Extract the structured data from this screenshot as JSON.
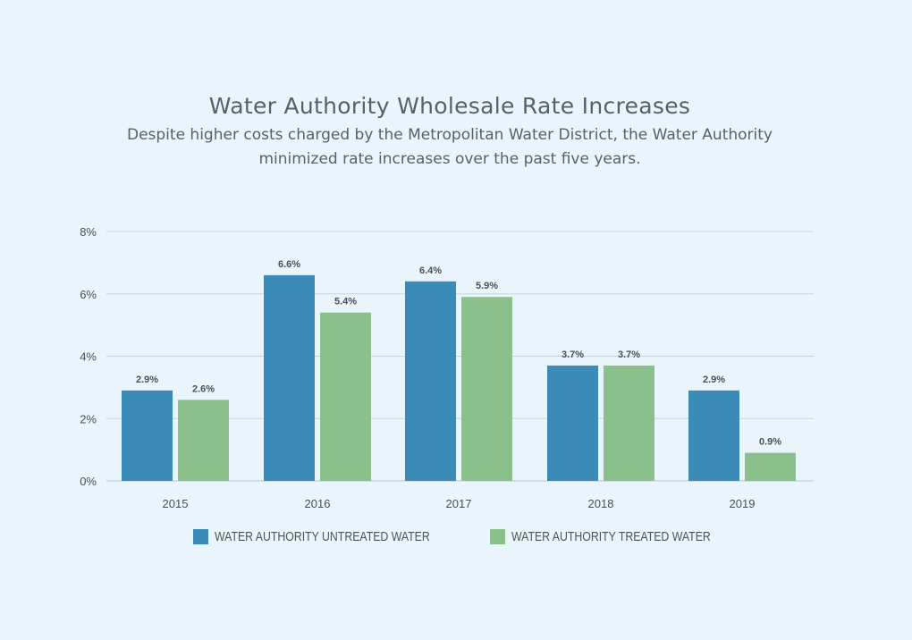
{
  "chart_data": {
    "type": "bar",
    "title": "Water Authority Wholesale Rate Increases",
    "subtitle": "Despite higher costs charged by the Metropolitan Water District, the Water Authority minimized rate increases over the past five years.",
    "categories": [
      "2015",
      "2016",
      "2017",
      "2018",
      "2019"
    ],
    "series": [
      {
        "name": "WATER AUTHORITY UNTREATED WATER",
        "color": "#3a8cb6",
        "values": [
          2.9,
          6.6,
          6.4,
          3.7,
          2.9
        ],
        "labels": [
          "2.9%",
          "6.6%",
          "6.4%",
          "3.7%",
          "2.9%"
        ]
      },
      {
        "name": "WATER AUTHORITY TREATED WATER",
        "color": "#8bbf8b",
        "values": [
          2.6,
          5.4,
          5.9,
          3.7,
          0.9
        ],
        "labels": [
          "2.6%",
          "5.4%",
          "5.9%",
          "3.7%",
          "0.9%"
        ]
      }
    ],
    "ylim": [
      0,
      8
    ],
    "yticks": [
      0,
      2,
      4,
      6,
      8
    ],
    "ytick_labels": [
      "0%",
      "2%",
      "4%",
      "6%",
      "8%"
    ],
    "grid": true,
    "legend_position": "bottom"
  }
}
